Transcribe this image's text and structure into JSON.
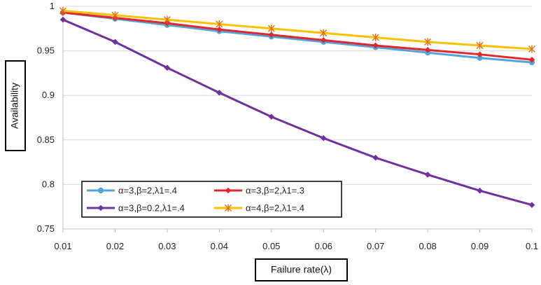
{
  "chart_data": {
    "type": "line",
    "title": "",
    "xlabel": "Failure rate(λ)",
    "ylabel": "Availability",
    "x": [
      0.01,
      0.02,
      0.03,
      0.04,
      0.05,
      0.06,
      0.07,
      0.08,
      0.09,
      0.1
    ],
    "x_tick_labels": [
      "0.01",
      "0.02",
      "0.03",
      "0.04",
      "0.05",
      "0.06",
      "0.07",
      "0.08",
      "0.09",
      "0.1"
    ],
    "xlim": [
      0.01,
      0.1
    ],
    "ylim": [
      0.75,
      1.0
    ],
    "y_ticks": [
      0.75,
      0.8,
      0.85,
      0.9,
      0.95,
      1.0
    ],
    "y_tick_labels": [
      "0.75",
      "0.8",
      "0.85",
      "0.9",
      "0.95",
      "1"
    ],
    "grid": "horizontal",
    "legend_position": "lower-left",
    "series": [
      {
        "name": "α=3,β=2,λ1=.4",
        "color": "#4ea6dc",
        "marker": "circle",
        "values": [
          0.993,
          0.986,
          0.979,
          0.972,
          0.966,
          0.96,
          0.954,
          0.948,
          0.942,
          0.937
        ]
      },
      {
        "name": "α=3,β=2,λ1=.3",
        "color": "#e3262b",
        "marker": "diamond",
        "values": [
          0.993,
          0.987,
          0.981,
          0.974,
          0.968,
          0.962,
          0.956,
          0.951,
          0.946,
          0.94
        ]
      },
      {
        "name": "α=3,β=0.2,λ1=.4",
        "color": "#7030a0",
        "marker": "diamond",
        "values": [
          0.985,
          0.96,
          0.931,
          0.903,
          0.876,
          0.852,
          0.83,
          0.811,
          0.793,
          0.777
        ]
      },
      {
        "name": "α=4,β=2,λ1=.4",
        "color": "#ffc000",
        "marker": "asterisk",
        "values": [
          0.995,
          0.99,
          0.985,
          0.98,
          0.975,
          0.97,
          0.965,
          0.96,
          0.956,
          0.952
        ]
      }
    ]
  }
}
